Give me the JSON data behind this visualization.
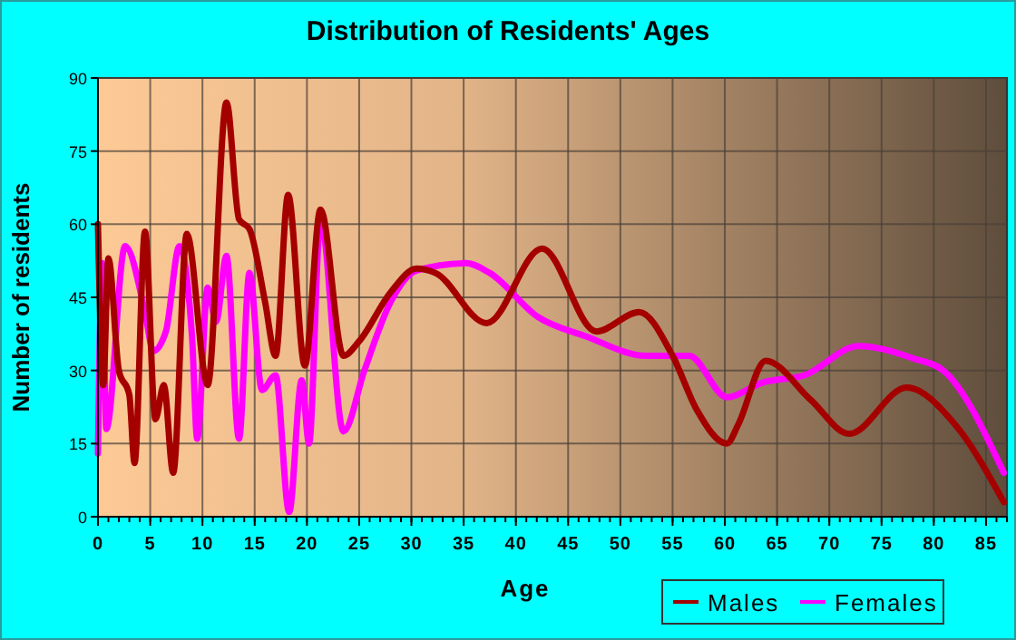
{
  "chart_data": {
    "type": "line",
    "title": "Distribution of Residents' Ages",
    "xlabel": "Age",
    "ylabel": "Number of residents",
    "xlim": [
      0,
      87
    ],
    "xticks": [
      0,
      5,
      10,
      15,
      20,
      25,
      30,
      35,
      40,
      45,
      50,
      55,
      60,
      65,
      70,
      75,
      80,
      85
    ],
    "ylim": [
      0,
      90
    ],
    "yticks": [
      0,
      15,
      30,
      45,
      60,
      75,
      90
    ],
    "grid": true,
    "legend": "bottom right",
    "marker": "none",
    "line_style": "solid",
    "series": [
      {
        "name": "Males",
        "color": "#a50000",
        "x": [
          0,
          0.5,
          1,
          2,
          3,
          3.5,
          4.5,
          5.5,
          6.3,
          7.2,
          8.5,
          10.5,
          12.3,
          13.5,
          14.5,
          16,
          17,
          18.2,
          19.8,
          21.3,
          23.5,
          25,
          28,
          30.5,
          32.3,
          37.2,
          42.5,
          47.7,
          51.8,
          55,
          57.3,
          60.2,
          61.3,
          63.9,
          68.2,
          71.9,
          77.4,
          82,
          86.7
        ],
        "values": [
          60,
          27,
          53,
          30,
          25,
          11,
          58.5,
          20,
          27,
          9,
          58,
          27,
          85,
          61,
          59,
          44,
          33,
          66,
          31,
          63,
          33,
          36,
          46,
          50.9,
          50,
          39.7,
          55,
          38,
          42,
          33,
          22,
          15,
          19,
          32,
          24,
          17,
          26.5,
          19,
          3
        ]
      },
      {
        "name": "Females",
        "color": "#ff00ff",
        "x": [
          0,
          0.4,
          0.8,
          2.6,
          4.5,
          5.3,
          6.5,
          7.8,
          9,
          9.5,
          10.5,
          11.3,
          12.3,
          13.5,
          14.5,
          15.7,
          17,
          18.3,
          19.5,
          20.2,
          21.3,
          23.5,
          25.5,
          28,
          30.5,
          35.2,
          37.5,
          42.1,
          46.7,
          52.5,
          56.6,
          60.2,
          63.6,
          67.6,
          72.8,
          78,
          80.9,
          86.7
        ],
        "values": [
          13,
          52,
          18,
          55.5,
          42,
          34,
          38,
          55.5,
          37,
          16,
          47,
          40,
          53.5,
          16,
          50,
          26,
          29,
          1,
          28,
          15,
          61,
          17.5,
          30,
          44,
          50.5,
          52,
          50,
          41,
          37,
          33,
          33,
          24.5,
          27.5,
          29,
          35,
          32.5,
          30,
          9
        ]
      }
    ]
  }
}
